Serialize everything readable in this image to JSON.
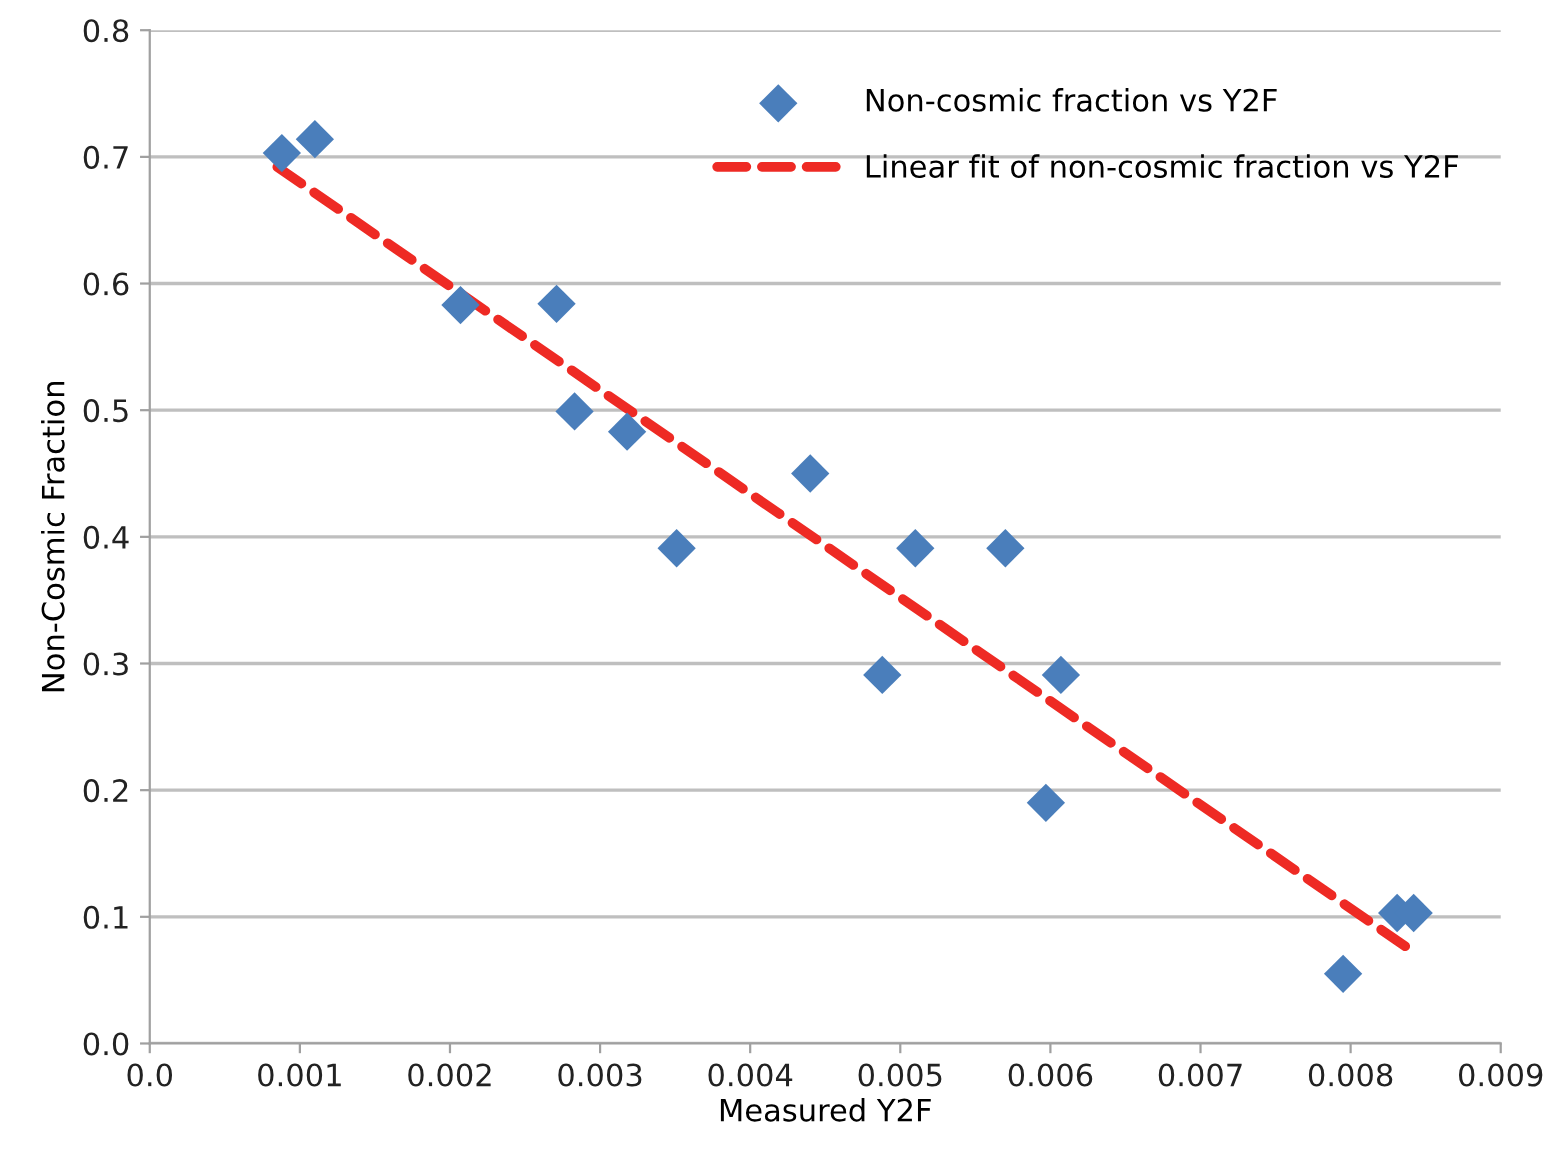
{
  "chart_data": {
    "type": "scatter",
    "xlabel": "Measured Y2F",
    "ylabel": "Non-Cosmic Fraction",
    "xlim": [
      0,
      0.009
    ],
    "xticks": [
      {
        "value": 0,
        "label": "0.0"
      },
      0.001,
      0.002,
      0.003,
      0.004,
      0.005,
      0.006,
      0.007,
      0.008,
      0.009
    ],
    "ylim": [
      0,
      0.8
    ],
    "yticks": [
      {
        "value": 0,
        "label": "0.0"
      },
      0.1,
      0.2,
      0.3,
      0.4,
      0.5,
      0.6,
      0.7,
      0.8
    ],
    "grid": "y",
    "legend": "top right",
    "series": [
      {
        "name": "Non-cosmic fraction vs Y2F",
        "marker": "diamond",
        "color": "#4a7ebb",
        "x": [
          0.00088,
          0.0011,
          0.00207,
          0.00271,
          0.00283,
          0.00318,
          0.00351,
          0.0044,
          0.00488,
          0.0051,
          0.0057,
          0.00607,
          0.00597,
          0.00795,
          0.00831,
          0.00842
        ],
        "values": [
          0.703,
          0.714,
          0.583,
          0.584,
          0.499,
          0.483,
          0.391,
          0.45,
          0.291,
          0.391,
          0.391,
          0.291,
          0.19,
          0.055,
          0.103,
          0.103
        ]
      },
      {
        "name": "Linear fit of non-cosmic fraction vs Y2F",
        "type": "line",
        "line_style": "dashed",
        "marker": "none",
        "color": "#ee2a24",
        "x": [
          0.00085,
          0.00841
        ],
        "values": [
          0.692,
          0.073
        ]
      }
    ]
  }
}
